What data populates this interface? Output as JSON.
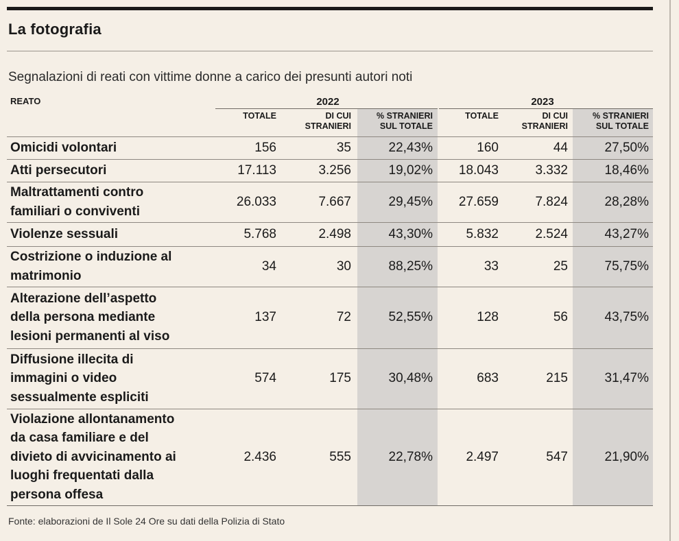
{
  "title": "La fotografia",
  "subtitle": "Segnalazioni di reati con vittime donne a carico dei presunti autori noti",
  "source": "Fonte: elaborazioni de Il Sole 24 Ore su dati della Polizia di Stato",
  "chart_data": {
    "type": "table",
    "row_header": "REATO",
    "years": [
      "2022",
      "2023"
    ],
    "columns": [
      "TOTALE",
      "DI CUI\nSTRANIERI",
      "% STRANIERI\nSUL TOTALE"
    ],
    "rows": [
      {
        "label": "Omicidi volontari",
        "values": [
          "156",
          "35",
          "22,43%",
          "160",
          "44",
          "27,50%"
        ]
      },
      {
        "label": "Atti persecutori",
        "values": [
          "17.113",
          "3.256",
          "19,02%",
          "18.043",
          "3.332",
          "18,46%"
        ]
      },
      {
        "label": "Maltrattamenti contro\nfamiliari o conviventi",
        "values": [
          "26.033",
          "7.667",
          "29,45%",
          "27.659",
          "7.824",
          "28,28%"
        ]
      },
      {
        "label": "Violenze sessuali",
        "values": [
          "5.768",
          "2.498",
          "43,30%",
          "5.832",
          "2.524",
          "43,27%"
        ]
      },
      {
        "label": "Costrizione o induzione al\nmatrimonio",
        "values": [
          "34",
          "30",
          "88,25%",
          "33",
          "25",
          "75,75%"
        ]
      },
      {
        "label": "Alterazione dell’aspetto\ndella persona mediante\nlesioni permanenti al viso",
        "values": [
          "137",
          "72",
          "52,55%",
          "128",
          "56",
          "43,75%"
        ]
      },
      {
        "label": "Diffusione illecita di\nimmagini o video\nsessualmente espliciti",
        "values": [
          "574",
          "175",
          "30,48%",
          "683",
          "215",
          "31,47%"
        ]
      },
      {
        "label": "Violazione allontanamento\nda casa familiare e del\ndivieto di avvicinamento ai\nluoghi frequentati dalla\npersona offesa",
        "values": [
          "2.436",
          "555",
          "22,78%",
          "2.497",
          "547",
          "21,90%"
        ]
      }
    ]
  }
}
